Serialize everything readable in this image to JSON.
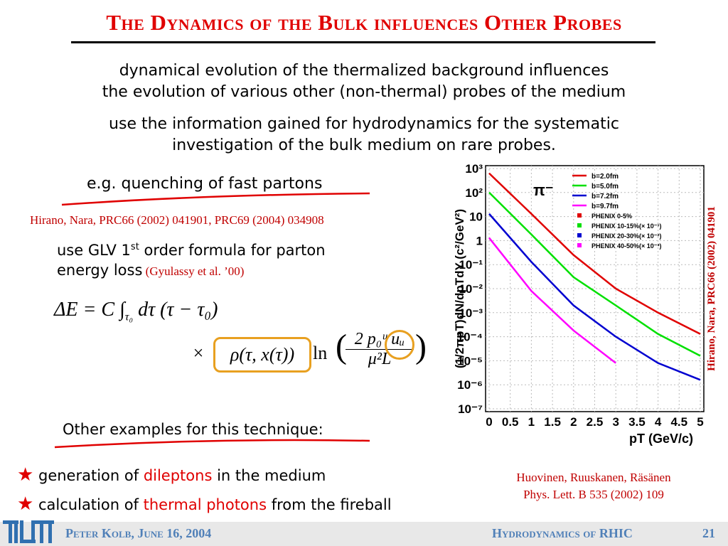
{
  "header": {
    "title": "The Dynamics of the Bulk influences Other Probes"
  },
  "intro": [
    "dynamical evolution of the thermalized background influences",
    "the evolution of various other (non-thermal) probes of the medium"
  ],
  "intro2": [
    "use the information gained for hydrodynamics for the systematic",
    "investigation of the  bulk medium on rare probes."
  ],
  "example": {
    "heading": "e.g. quenching of fast partons",
    "reference": "Hirano, Nara, PRC66 (2002) 041901, PRC69 (2004) 034908",
    "glv": {
      "pre": "use GLV 1",
      "sup": "st",
      "post": " order formula for parton",
      "line2": "energy loss",
      "cite": " (Gyulassy et al. ’00)"
    },
    "formula": {
      "line1": "ΔE = C ∫",
      "lower": "τ₀",
      "line1b": "dτ (τ − τ₀)",
      "times": "×",
      "rho": "ρ(τ, x(τ))",
      "ln": "ln",
      "num": "2 p₀ᵘ uᵤ",
      "den": "μ²L"
    }
  },
  "other": {
    "heading": "Other examples for this technique:",
    "items": [
      {
        "pre": "generation of ",
        "hl": "dileptons",
        "post": " in the medium"
      },
      {
        "pre": "calculation of ",
        "hl": "thermal photons",
        "post": " from the fireball"
      }
    ]
  },
  "plot_reference": [
    "Huovinen, Ruuskanen, Räsänen",
    "Phys. Lett. B 535 (2002) 109"
  ],
  "footer": {
    "author": "Peter Kolb, June 16, 2004",
    "topic": "Hydrodynamics of RHIC",
    "page": "21"
  },
  "chart_data": {
    "type": "line",
    "annotation": "π⁻",
    "side_reference": "Hirano, Nara, PRC66 (2002) 041901",
    "x_label": "pT (GeV/c)",
    "y_label": "(1/2πpT)dN/dpTdY (c²/GeV²)",
    "x": [
      0,
      1,
      2,
      3,
      4,
      5
    ],
    "log_y": true,
    "grid": true,
    "xlim": [
      0,
      5
    ],
    "xticks": [
      0,
      0.5,
      1,
      1.5,
      2,
      2.5,
      3,
      3.5,
      4,
      4.5,
      5
    ],
    "ylim": [
      1e-07,
      1000
    ],
    "yticks": [
      {
        "value": 1e-07,
        "label": "10⁻⁷"
      },
      {
        "value": 1e-06,
        "label": "10⁻⁶"
      },
      {
        "value": 1e-05,
        "label": "10⁻⁵"
      },
      {
        "value": 0.0001,
        "label": "10⁻⁴"
      },
      {
        "value": 0.001,
        "label": "10⁻³"
      },
      {
        "value": 0.01,
        "label": "10⁻²"
      },
      {
        "value": 0.1,
        "label": "10⁻¹"
      },
      1,
      10,
      {
        "value": 100,
        "label": "10²"
      },
      {
        "value": 1000,
        "label": "10³"
      }
    ],
    "series": [
      {
        "name": "b=2.0fm",
        "color": "#e00000",
        "values": [
          630,
          13,
          0.25,
          0.01,
          0.001,
          0.00013
        ]
      },
      {
        "name": "b=5.0fm",
        "color": "#00e000",
        "values": [
          100,
          1.8,
          0.03,
          0.002,
          0.00013,
          1.6e-05
        ]
      },
      {
        "name": "b=7.2fm",
        "color": "#0000d0",
        "values": [
          13,
          0.13,
          0.002,
          0.0001,
          8e-06,
          1.6e-06
        ]
      },
      {
        "name": "b=9.7fm",
        "color": "#ff00ff",
        "values": [
          1.3,
          0.008,
          0.00018,
          8e-06,
          null,
          null
        ]
      }
    ],
    "legend": [
      {
        "name": "PHENIX 0-5%",
        "color": "#e00000"
      },
      {
        "name": "PHENIX 10-15%(× 10⁻¹)",
        "color": "#00e000"
      },
      {
        "name": "PHENIX 20-30%(× 10⁻²)",
        "color": "#0000d0"
      },
      {
        "name": "PHENIX 40-50%(× 10⁻³)",
        "color": "#ff00ff"
      }
    ]
  }
}
